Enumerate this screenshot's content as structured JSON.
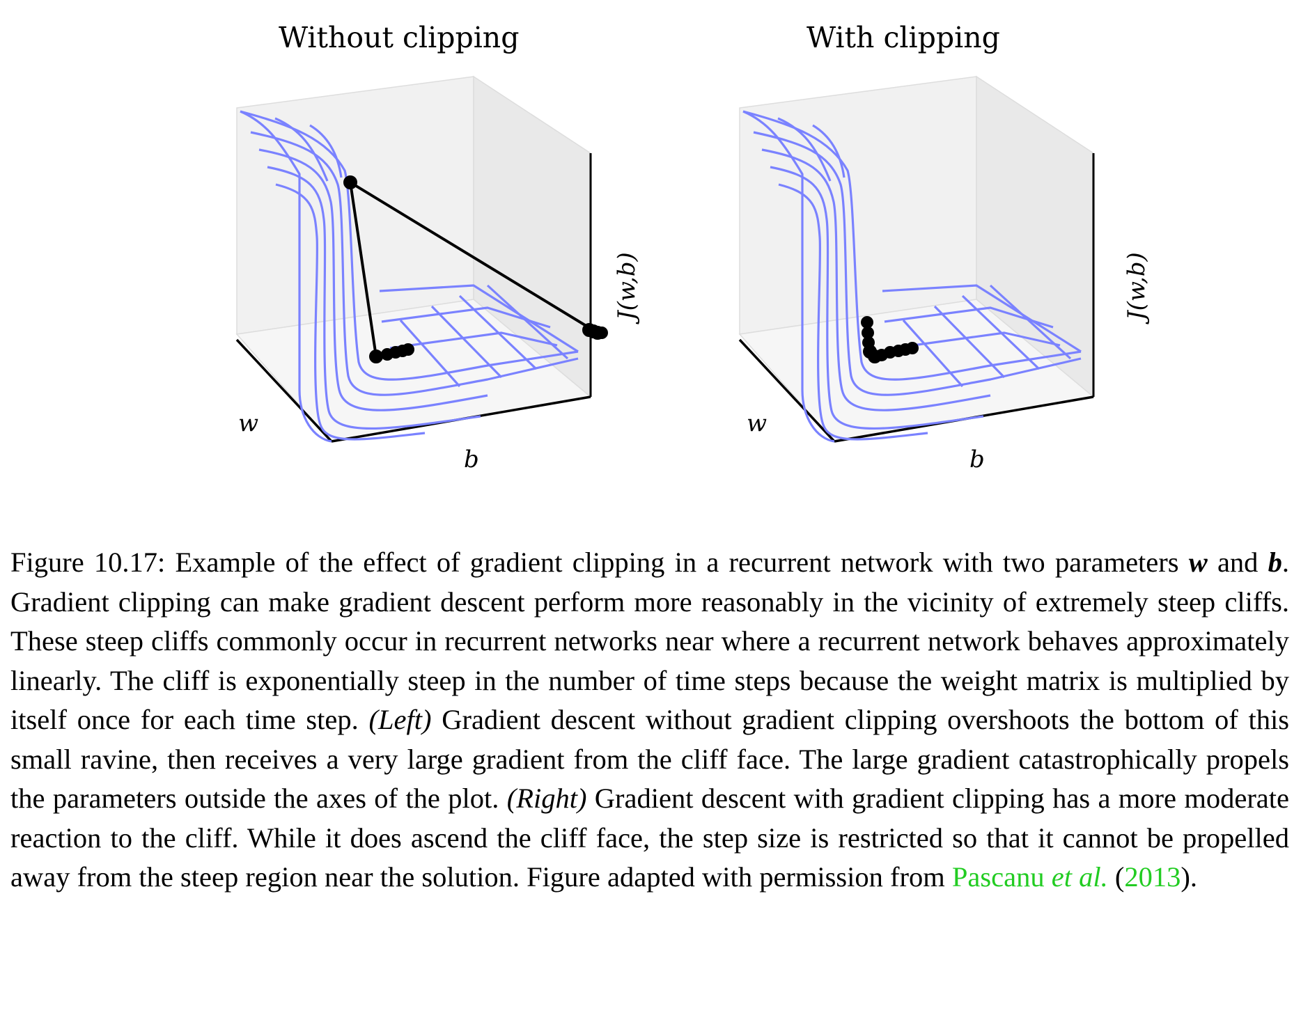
{
  "figure": {
    "panels": [
      {
        "title": "Without clipping",
        "xlabel": "b",
        "ylabel": "w",
        "zlabel": "J(w,b)"
      },
      {
        "title": "With clipping",
        "xlabel": "b",
        "ylabel": "w",
        "zlabel": "J(w,b)"
      }
    ],
    "colors": {
      "surface": "#7a82ff",
      "trajectory": "#000000",
      "pane": "#eeeeee",
      "citation": "#22cc22"
    }
  },
  "caption": {
    "label": "Figure 10.17:",
    "part1": "Example of the effect of gradient clipping in a recurrent network with two parameters",
    "sym_w": "w",
    "and": "and",
    "sym_b": "b",
    "part2": ". Gradient clipping can make gradient descent perform more reasonably in the vicinity of extremely steep cliffs. These steep cliffs commonly occur in recurrent networks near where a recurrent network behaves approximately linearly. The cliff is exponentially steep in the number of time steps because the weight matrix is multiplied by itself once for each time step.",
    "left_tag": "(Left)",
    "part3": "Gradient descent without gradient clipping overshoots the bottom of this small ravine, then receives a very large gradient from the cliff face. The large gradient catastrophically propels the parameters outside the axes of the plot.",
    "right_tag": "(Right)",
    "part4": "Gradient descent with gradient clipping has a more moderate reaction to the cliff. While it does ascend the cliff face, the step size is restricted so that it cannot be propelled away from the steep region near the solution. Figure adapted with permission from",
    "cite_author": "Pascanu",
    "cite_etal": "et al.",
    "cite_open": "(",
    "cite_year": "2013",
    "cite_close": ")."
  }
}
